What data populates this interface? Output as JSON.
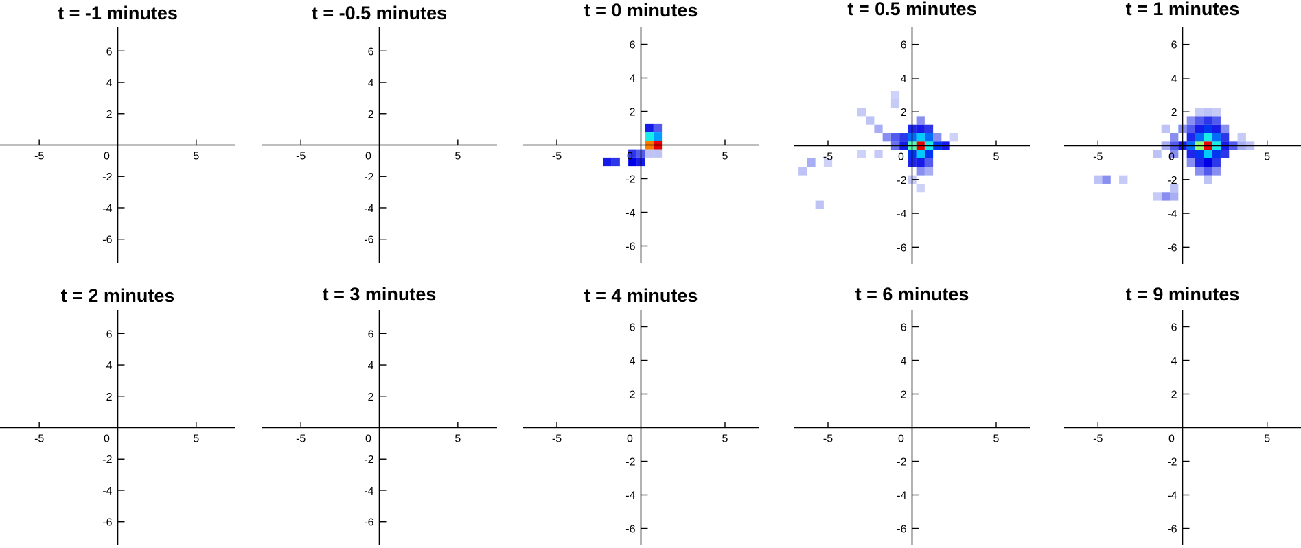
{
  "figure": {
    "panel_count": 10
  },
  "chart_data": [
    {
      "type": "heatmap",
      "title": "t = -1 minutes",
      "xlim": [
        -7.5,
        7.5
      ],
      "ylim": [
        -7.5,
        7.5
      ],
      "xticks": [
        -5,
        0,
        5
      ],
      "yticks": [
        -6,
        -4,
        -2,
        2,
        4,
        6
      ],
      "cell_size": 0.5,
      "cells": []
    },
    {
      "type": "heatmap",
      "title": "t = -0.5 minutes",
      "xlim": [
        -7.5,
        7.5
      ],
      "ylim": [
        -7.5,
        7.5
      ],
      "xticks": [
        -5,
        0,
        5
      ],
      "yticks": [
        -6,
        -4,
        -2,
        2,
        4,
        6
      ],
      "cell_size": 0.5,
      "cells": []
    },
    {
      "type": "heatmap",
      "title": "t = 0 minutes",
      "xlim": [
        -7,
        7
      ],
      "ylim": [
        -7,
        7
      ],
      "xticks": [
        -5,
        0,
        5
      ],
      "yticks": [
        -6,
        -4,
        -2,
        2,
        4,
        6
      ],
      "cell_size": 0.5,
      "cells": [
        {
          "x": 0.5,
          "y": 1.0,
          "v": 0.3
        },
        {
          "x": 0.5,
          "y": 0.5,
          "v": 0.6
        },
        {
          "x": 0.5,
          "y": 0.0,
          "v": 0.9
        },
        {
          "x": 1.0,
          "y": 1.0,
          "v": 0.2
        },
        {
          "x": 1.0,
          "y": 0.5,
          "v": 0.5
        },
        {
          "x": 1.0,
          "y": 0.0,
          "v": 1.0
        },
        {
          "x": 1.0,
          "y": -0.5,
          "v": 0.1
        },
        {
          "x": 0.5,
          "y": -0.5,
          "v": 0.1
        },
        {
          "x": -0.5,
          "y": -0.5,
          "v": 0.25
        },
        {
          "x": -0.5,
          "y": -1.0,
          "v": 0.35
        },
        {
          "x": 0.0,
          "y": -0.5,
          "v": 0.2
        },
        {
          "x": 0.0,
          "y": -1.0,
          "v": 0.3
        },
        {
          "x": -2.0,
          "y": -1.0,
          "v": 0.3
        },
        {
          "x": -1.5,
          "y": -1.0,
          "v": 0.25
        }
      ]
    },
    {
      "type": "heatmap",
      "title": "t = 0.5 minutes",
      "xlim": [
        -7,
        7
      ],
      "ylim": [
        -7,
        7
      ],
      "xticks": [
        -5,
        0,
        5
      ],
      "yticks": [
        -6,
        -4,
        -2,
        2,
        4,
        6
      ],
      "cell_size": 0.5,
      "cells": [
        {
          "x": 0.5,
          "y": 0.0,
          "v": 1.0
        },
        {
          "x": 0.0,
          "y": 0.0,
          "v": 0.65
        },
        {
          "x": 1.0,
          "y": 0.0,
          "v": 0.6
        },
        {
          "x": 0.5,
          "y": 0.5,
          "v": 0.55
        },
        {
          "x": 0.5,
          "y": -0.5,
          "v": 0.55
        },
        {
          "x": 1.0,
          "y": 0.5,
          "v": 0.45
        },
        {
          "x": 0.0,
          "y": 0.5,
          "v": 0.45
        },
        {
          "x": 1.5,
          "y": 0.0,
          "v": 0.4
        },
        {
          "x": 0.0,
          "y": -0.5,
          "v": 0.4
        },
        {
          "x": 1.0,
          "y": -0.5,
          "v": 0.4
        },
        {
          "x": 2.0,
          "y": 0.0,
          "v": 0.3
        },
        {
          "x": -0.5,
          "y": 0.0,
          "v": 0.3
        },
        {
          "x": -0.5,
          "y": 0.5,
          "v": 0.25
        },
        {
          "x": 0.0,
          "y": 1.0,
          "v": 0.28
        },
        {
          "x": 0.5,
          "y": 1.0,
          "v": 0.3
        },
        {
          "x": 1.0,
          "y": 1.0,
          "v": 0.25
        },
        {
          "x": 0.5,
          "y": -1.0,
          "v": 0.3
        },
        {
          "x": 0.0,
          "y": -1.0,
          "v": 0.28
        },
        {
          "x": 1.0,
          "y": -1.0,
          "v": 0.2
        },
        {
          "x": -1.0,
          "y": 0.5,
          "v": 0.2
        },
        {
          "x": -1.0,
          "y": 0.0,
          "v": 0.18
        },
        {
          "x": -1.5,
          "y": 0.5,
          "v": 0.15
        },
        {
          "x": -2.0,
          "y": 1.0,
          "v": 0.12
        },
        {
          "x": -2.5,
          "y": 1.5,
          "v": 0.1
        },
        {
          "x": -3.0,
          "y": 2.0,
          "v": 0.08
        },
        {
          "x": 0.5,
          "y": -1.5,
          "v": 0.15
        },
        {
          "x": 1.0,
          "y": -1.5,
          "v": 0.12
        },
        {
          "x": 1.5,
          "y": 0.5,
          "v": 0.15
        },
        {
          "x": 2.5,
          "y": 0.5,
          "v": 0.06
        },
        {
          "x": 0.5,
          "y": 1.5,
          "v": 0.15
        },
        {
          "x": -1.0,
          "y": 2.5,
          "v": 0.08
        },
        {
          "x": -2.0,
          "y": -0.5,
          "v": 0.08
        },
        {
          "x": -3.0,
          "y": -0.5,
          "v": 0.06
        },
        {
          "x": -6.0,
          "y": -1.0,
          "v": 0.12
        },
        {
          "x": -6.5,
          "y": -1.5,
          "v": 0.1
        },
        {
          "x": -5.0,
          "y": -1.0,
          "v": 0.06
        },
        {
          "x": -5.5,
          "y": -3.5,
          "v": 0.1
        },
        {
          "x": -1.0,
          "y": 3.0,
          "v": 0.06
        },
        {
          "x": 0.0,
          "y": -2.0,
          "v": 0.08
        },
        {
          "x": 0.5,
          "y": -2.5,
          "v": 0.06
        }
      ]
    },
    {
      "type": "heatmap",
      "title": "t = 1 minutes",
      "xlim": [
        -7,
        7
      ],
      "ylim": [
        -7,
        7
      ],
      "xticks": [
        -5,
        0,
        5
      ],
      "yticks": [
        -6,
        -4,
        -2,
        2,
        4,
        6
      ],
      "cell_size": 0.5,
      "cells": [
        {
          "x": 1.5,
          "y": 0.0,
          "v": 1.0
        },
        {
          "x": 1.0,
          "y": 0.0,
          "v": 0.7
        },
        {
          "x": 2.0,
          "y": 0.0,
          "v": 0.6
        },
        {
          "x": 1.5,
          "y": 0.5,
          "v": 0.6
        },
        {
          "x": 1.5,
          "y": -0.5,
          "v": 0.55
        },
        {
          "x": 0.5,
          "y": 0.0,
          "v": 0.45
        },
        {
          "x": 1.0,
          "y": 0.5,
          "v": 0.45
        },
        {
          "x": 2.0,
          "y": 0.5,
          "v": 0.45
        },
        {
          "x": 1.0,
          "y": -0.5,
          "v": 0.4
        },
        {
          "x": 2.0,
          "y": -0.5,
          "v": 0.4
        },
        {
          "x": 1.5,
          "y": 1.0,
          "v": 0.4
        },
        {
          "x": 1.5,
          "y": -1.0,
          "v": 0.35
        },
        {
          "x": 0.0,
          "y": 0.0,
          "v": 0.3
        },
        {
          "x": 2.5,
          "y": 0.0,
          "v": 0.3
        },
        {
          "x": 0.5,
          "y": 0.5,
          "v": 0.28
        },
        {
          "x": 0.5,
          "y": -0.5,
          "v": 0.28
        },
        {
          "x": 2.5,
          "y": 0.5,
          "v": 0.25
        },
        {
          "x": 2.5,
          "y": -0.5,
          "v": 0.25
        },
        {
          "x": 1.0,
          "y": 1.0,
          "v": 0.3
        },
        {
          "x": 2.0,
          "y": 1.0,
          "v": 0.3
        },
        {
          "x": 1.0,
          "y": -1.0,
          "v": 0.28
        },
        {
          "x": 2.0,
          "y": -1.0,
          "v": 0.25
        },
        {
          "x": 3.0,
          "y": 0.0,
          "v": 0.2
        },
        {
          "x": -0.5,
          "y": 0.0,
          "v": 0.2
        },
        {
          "x": -0.5,
          "y": 0.5,
          "v": 0.15
        },
        {
          "x": -0.5,
          "y": -0.5,
          "v": 0.15
        },
        {
          "x": 0.0,
          "y": 1.0,
          "v": 0.15
        },
        {
          "x": 0.5,
          "y": 1.0,
          "v": 0.2
        },
        {
          "x": 0.5,
          "y": 1.5,
          "v": 0.15
        },
        {
          "x": 1.0,
          "y": 1.5,
          "v": 0.2
        },
        {
          "x": 1.5,
          "y": 1.5,
          "v": 0.25
        },
        {
          "x": 2.0,
          "y": 1.5,
          "v": 0.2
        },
        {
          "x": 2.5,
          "y": 1.0,
          "v": 0.15
        },
        {
          "x": 0.5,
          "y": -1.0,
          "v": 0.15
        },
        {
          "x": 1.0,
          "y": -1.5,
          "v": 0.15
        },
        {
          "x": 1.5,
          "y": -1.5,
          "v": 0.2
        },
        {
          "x": 2.0,
          "y": -1.5,
          "v": 0.15
        },
        {
          "x": 3.5,
          "y": 0.0,
          "v": 0.12
        },
        {
          "x": 4.0,
          "y": 0.0,
          "v": 0.1
        },
        {
          "x": -1.0,
          "y": 0.0,
          "v": 0.12
        },
        {
          "x": -1.5,
          "y": -0.5,
          "v": 0.1
        },
        {
          "x": -1.0,
          "y": 1.0,
          "v": 0.1
        },
        {
          "x": 1.5,
          "y": 2.0,
          "v": 0.1
        },
        {
          "x": 1.0,
          "y": 2.0,
          "v": 0.08
        },
        {
          "x": 2.0,
          "y": 2.0,
          "v": 0.08
        },
        {
          "x": 1.5,
          "y": -2.0,
          "v": 0.1
        },
        {
          "x": -4.5,
          "y": -2.0,
          "v": 0.15
        },
        {
          "x": -5.0,
          "y": -2.0,
          "v": 0.1
        },
        {
          "x": -3.5,
          "y": -2.0,
          "v": 0.08
        },
        {
          "x": -1.0,
          "y": -3.0,
          "v": 0.15
        },
        {
          "x": -0.5,
          "y": -3.0,
          "v": 0.12
        },
        {
          "x": -1.5,
          "y": -3.0,
          "v": 0.08
        },
        {
          "x": -0.5,
          "y": -2.5,
          "v": 0.1
        },
        {
          "x": 3.5,
          "y": 0.5,
          "v": 0.08
        }
      ]
    },
    {
      "type": "heatmap",
      "title": "t = 2 minutes",
      "xlim": [
        -7.5,
        7.5
      ],
      "ylim": [
        -7.5,
        7.5
      ],
      "xticks": [
        -5,
        0,
        5
      ],
      "yticks": [
        -6,
        -4,
        -2,
        2,
        4,
        6
      ],
      "cell_size": 0.5,
      "cells": []
    },
    {
      "type": "heatmap",
      "title": "t = 3 minutes",
      "xlim": [
        -7.5,
        7.5
      ],
      "ylim": [
        -7.5,
        7.5
      ],
      "xticks": [
        -5,
        0,
        5
      ],
      "yticks": [
        -6,
        -4,
        -2,
        2,
        4,
        6
      ],
      "cell_size": 0.5,
      "cells": []
    },
    {
      "type": "heatmap",
      "title": "t = 4 minutes",
      "xlim": [
        -7,
        7
      ],
      "ylim": [
        -7,
        7
      ],
      "xticks": [
        -5,
        0,
        5
      ],
      "yticks": [
        -6,
        -4,
        -2,
        2,
        4,
        6
      ],
      "cell_size": 0.5,
      "cells": []
    },
    {
      "type": "heatmap",
      "title": "t = 6 minutes",
      "xlim": [
        -7,
        7
      ],
      "ylim": [
        -7,
        7
      ],
      "xticks": [
        -5,
        0,
        5
      ],
      "yticks": [
        -6,
        -4,
        -2,
        2,
        4,
        6
      ],
      "cell_size": 0.5,
      "cells": []
    },
    {
      "type": "heatmap",
      "title": "t = 9 minutes",
      "xlim": [
        -7,
        7
      ],
      "ylim": [
        -7,
        7
      ],
      "xticks": [
        -5,
        0,
        5
      ],
      "yticks": [
        -6,
        -4,
        -2,
        2,
        4,
        6
      ],
      "cell_size": 0.5,
      "cells": []
    }
  ]
}
